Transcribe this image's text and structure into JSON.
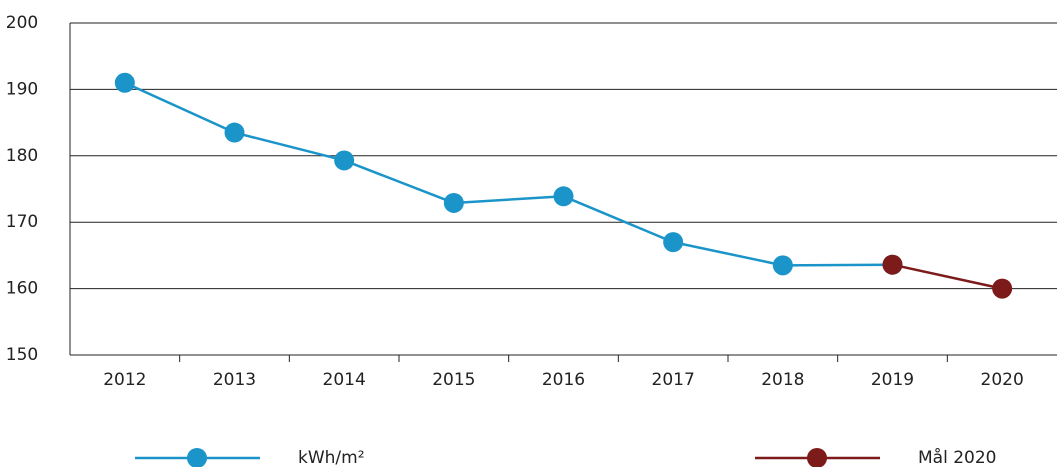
{
  "chart_data": {
    "type": "line",
    "categories": [
      "2012",
      "2013",
      "2014",
      "2015",
      "2016",
      "2017",
      "2018",
      "2019",
      "2020"
    ],
    "series": [
      {
        "name": "kWh/m²",
        "color": "#1b95c9",
        "values": [
          191,
          183.5,
          179.3,
          172.9,
          173.9,
          167,
          163.5,
          163.6,
          null
        ]
      },
      {
        "name": "Mål 2020",
        "color": "#7d1a1a",
        "values": [
          null,
          null,
          null,
          null,
          null,
          null,
          null,
          163.6,
          160
        ]
      }
    ],
    "ylim": [
      150,
      200
    ],
    "yticks": [
      150,
      160,
      170,
      180,
      190,
      200
    ],
    "grid": true
  }
}
